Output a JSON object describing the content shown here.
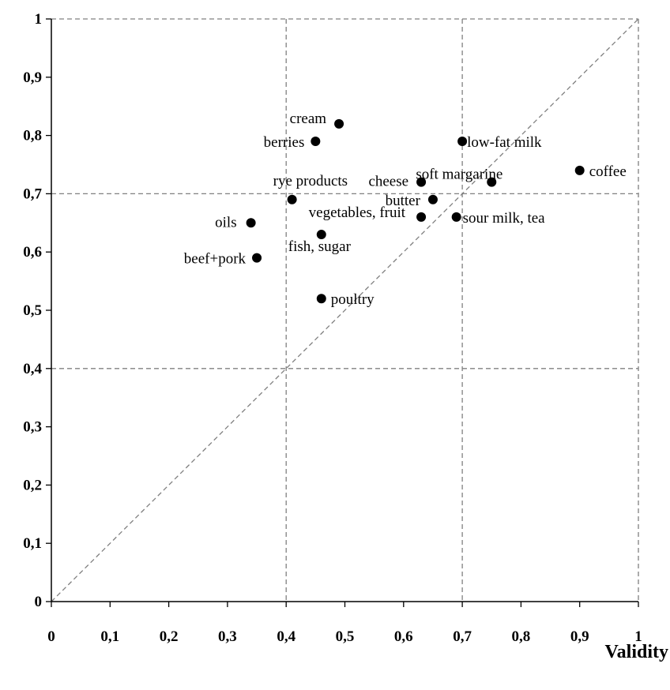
{
  "chart_data": {
    "type": "scatter",
    "xlabel": "Validity",
    "ylabel": "",
    "xlim": [
      0,
      1
    ],
    "ylim": [
      0,
      1
    ],
    "x_ticks": [
      "0",
      "0,1",
      "0,2",
      "0,3",
      "0,4",
      "0,5",
      "0,6",
      "0,7",
      "0,8",
      "0,9",
      "1"
    ],
    "y_ticks": [
      "0",
      "0,1",
      "0,2",
      "0,3",
      "0,4",
      "0,5",
      "0,6",
      "0,7",
      "0,8",
      "0,9",
      "1"
    ],
    "reference_lines": {
      "vertical": [
        0.4,
        0.7,
        1.0
      ],
      "horizontal": [
        0.4,
        0.7,
        1.0
      ],
      "diagonal": [
        [
          0,
          0
        ],
        [
          1,
          1
        ]
      ]
    },
    "points": [
      {
        "label": "cream",
        "x": 0.49,
        "y": 0.82
      },
      {
        "label": "berries",
        "x": 0.45,
        "y": 0.79
      },
      {
        "label": "low-fat milk",
        "x": 0.7,
        "y": 0.79
      },
      {
        "label": "coffee",
        "x": 0.9,
        "y": 0.74
      },
      {
        "label": "soft margarine",
        "x": 0.75,
        "y": 0.72
      },
      {
        "label": "cheese",
        "x": 0.63,
        "y": 0.72
      },
      {
        "label": "rye products",
        "x": 0.41,
        "y": 0.69
      },
      {
        "label": "butter",
        "x": 0.65,
        "y": 0.69
      },
      {
        "label": "vegetables, fruit",
        "x": 0.63,
        "y": 0.66
      },
      {
        "label": "sour milk, tea",
        "x": 0.69,
        "y": 0.66
      },
      {
        "label": "oils",
        "x": 0.34,
        "y": 0.65
      },
      {
        "label": "fish, sugar",
        "x": 0.46,
        "y": 0.63
      },
      {
        "label": "beef+pork",
        "x": 0.35,
        "y": 0.59
      },
      {
        "label": "poultry",
        "x": 0.46,
        "y": 0.52
      }
    ],
    "grid": false,
    "legend": "none"
  }
}
